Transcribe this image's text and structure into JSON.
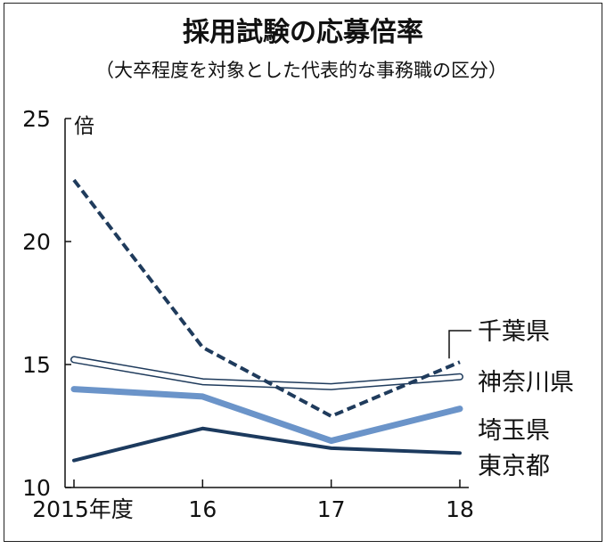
{
  "chart_data": {
    "type": "line",
    "title": "採用試験の応募倍率",
    "subtitle": "（大卒程度を対象とした代表的な事務職の区分）",
    "ylabel": "倍",
    "xlabel": "",
    "ylim": [
      10,
      25
    ],
    "yticks": [
      10,
      15,
      20,
      25
    ],
    "x": [
      "2015年度",
      "16",
      "17",
      "18"
    ],
    "grid": false,
    "legend": "direct labels at right end",
    "series": [
      {
        "name": "千葉県",
        "values": [
          22.5,
          15.7,
          12.9,
          15.1
        ],
        "color": "#1f3b5c",
        "style": "dashed"
      },
      {
        "name": "神奈川県",
        "values": [
          15.2,
          14.3,
          14.1,
          14.5
        ],
        "color": "#1f3b5c",
        "style": "outline"
      },
      {
        "name": "埼玉県",
        "values": [
          14.0,
          13.7,
          11.9,
          13.2
        ],
        "color": "#6b94c9",
        "style": "thick"
      },
      {
        "name": "東京都",
        "values": [
          11.1,
          12.4,
          11.6,
          11.4
        ],
        "color": "#1c3a5e",
        "style": "solid"
      }
    ]
  }
}
